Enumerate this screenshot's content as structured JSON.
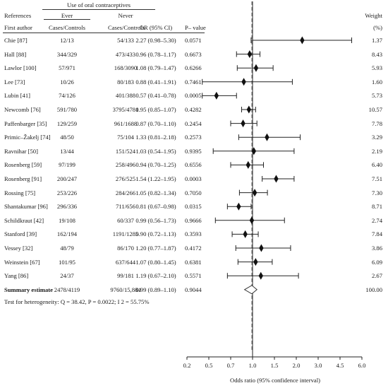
{
  "header": {
    "references": "References",
    "first_author": "First author",
    "use_group": "Use of oral contraceptives",
    "ever": "Ever",
    "never": "Never",
    "cases_controls_ever": "Cases/Controls",
    "cases_controls_never": "Cases/Controls",
    "or_ci": "OR (95% CI)",
    "p_value": "P– value",
    "weight": "Weight",
    "weight_unit": "(%)"
  },
  "summary": {
    "label": "Summary estimate",
    "ever": "2478/4119",
    "never": "9760/15,884",
    "or_text": "0.99 (0.89–1.10)",
    "p": "0.9044",
    "weight": "100.00",
    "or": 0.99,
    "lo": 0.89,
    "hi": 1.1
  },
  "heterogeneity": "Test for heterogeneity: Q = 38.42, P = 0.0022; I 2 = 55.75%",
  "chart_data": {
    "type": "forest",
    "xlabel": "Odds ratio (95% confidence interval)",
    "xlim": [
      0.2,
      6.0
    ],
    "x_ticks": [
      0.2,
      0.5,
      0.7,
      1.0,
      1.5,
      2.0,
      3.0,
      4.5,
      6.0
    ],
    "x_tick_labels": [
      "0.2",
      "0.5",
      "0.7",
      "1.0",
      "1.5",
      "2.0",
      "3.0",
      "4.5",
      "6.0"
    ],
    "reference_line": 1.0,
    "pooled_line": 0.99,
    "studies": [
      {
        "author": "Chie [87]",
        "ever": "12/13",
        "never": "54/133",
        "or_text": "2.27 (0.98–5.30)",
        "p": "0.0571",
        "weight": "1.37",
        "or": 2.27,
        "lo": 0.98,
        "hi": 5.3
      },
      {
        "author": "Hall [88]",
        "ever": "344/329",
        "never": "473/433",
        "or_text": "0.96 (0.78–1.17)",
        "p": "0.6673",
        "weight": "8.43",
        "or": 0.96,
        "lo": 0.78,
        "hi": 1.17
      },
      {
        "author": "Lawlor [100]",
        "ever": "57/971",
        "never": "168/3090",
        "or_text": "1.08 (0.79–1.47)",
        "p": "0.6266",
        "weight": "5.93",
        "or": 1.08,
        "lo": 0.79,
        "hi": 1.47
      },
      {
        "author": "Lee [73]",
        "ever": "10/26",
        "never": "80/183",
        "or_text": "0.88 (0.41–1.91)",
        "p": "0.7461",
        "weight": "1.60",
        "or": 0.88,
        "lo": 0.41,
        "hi": 1.91
      },
      {
        "author": "Lubin [41]",
        "ever": "74/126",
        "never": "401/388",
        "or_text": "0.57 (0.41–0.78)",
        "p": "0.0005",
        "weight": "5.73",
        "or": 0.57,
        "lo": 0.41,
        "hi": 0.78
      },
      {
        "author": "Newcomb [76]",
        "ever": "591/780",
        "never": "3795/4781",
        "or_text": "0.95 (0.85–1.07)",
        "p": "0.4282",
        "weight": "10.57",
        "or": 0.95,
        "lo": 0.85,
        "hi": 1.07
      },
      {
        "author": "Paffenbarger [35]",
        "ever": "129/259",
        "never": "961/1688",
        "or_text": "0.87 (0.70–1.10)",
        "p": "0.2454",
        "weight": "7.78",
        "or": 0.87,
        "lo": 0.7,
        "hi": 1.1
      },
      {
        "author": "Primic–Žakelj [74]",
        "ever": "48/50",
        "never": "75/104",
        "or_text": "1.33 (0.81–2.18)",
        "p": "0.2573",
        "weight": "3.29",
        "or": 1.33,
        "lo": 0.81,
        "hi": 2.18
      },
      {
        "author": "Ravnihar [50]",
        "ever": "13/44",
        "never": "151/524",
        "or_text": "1.03 (0.54–1.95)",
        "p": "0.9395",
        "weight": "2.19",
        "or": 1.03,
        "lo": 0.54,
        "hi": 1.95
      },
      {
        "author": "Rosenberg [59]",
        "ever": "97/199",
        "never": "258/496",
        "or_text": "0.94 (0.70–1.25)",
        "p": "0.6556",
        "weight": "6.40",
        "or": 0.94,
        "lo": 0.7,
        "hi": 1.25
      },
      {
        "author": "Rosenberg [91]",
        "ever": "200/247",
        "never": "276/525",
        "or_text": "1.54 (1.22–1.95)",
        "p": "0.0003",
        "weight": "7.51",
        "or": 1.54,
        "lo": 1.22,
        "hi": 1.95
      },
      {
        "author": "Rossing [75]",
        "ever": "253/226",
        "never": "284/266",
        "or_text": "1.05 (0.82–1.34)",
        "p": "0.7050",
        "weight": "7.30",
        "or": 1.05,
        "lo": 0.82,
        "hi": 1.34
      },
      {
        "author": "Shantakumar [96]",
        "ever": "296/336",
        "never": "711/656",
        "or_text": "0.81 (0.67–0.98)",
        "p": "0.0315",
        "weight": "8.71",
        "or": 0.81,
        "lo": 0.67,
        "hi": 0.98
      },
      {
        "author": "Schildkraut [42]",
        "ever": "19/108",
        "never": "60/337",
        "or_text": "0.99 (0.56–1.73)",
        "p": "0.9666",
        "weight": "2.74",
        "or": 0.99,
        "lo": 0.56,
        "hi": 1.73
      },
      {
        "author": "Stanford [39]",
        "ever": "162/194",
        "never": "1191/1285",
        "or_text": "0.90 (0.72–1.13)",
        "p": "0.3593",
        "weight": "7.84",
        "or": 0.9,
        "lo": 0.72,
        "hi": 1.13
      },
      {
        "author": "Vessey [32]",
        "ever": "48/79",
        "never": "86/170",
        "or_text": "1.20 (0.77–1.87)",
        "p": "0.4172",
        "weight": "3.86",
        "or": 1.2,
        "lo": 0.77,
        "hi": 1.87
      },
      {
        "author": "Weinstein [67]",
        "ever": "101/95",
        "never": "637/644",
        "or_text": "1.07 (0.80–1.45)",
        "p": "0.6381",
        "weight": "6.09",
        "or": 1.07,
        "lo": 0.8,
        "hi": 1.45
      },
      {
        "author": "Yang [86]",
        "ever": "24/37",
        "never": "99/181",
        "or_text": "1.19 (0.67–2.10)",
        "p": "0.5571",
        "weight": "2.67",
        "or": 1.19,
        "lo": 0.67,
        "hi": 2.1
      }
    ]
  }
}
